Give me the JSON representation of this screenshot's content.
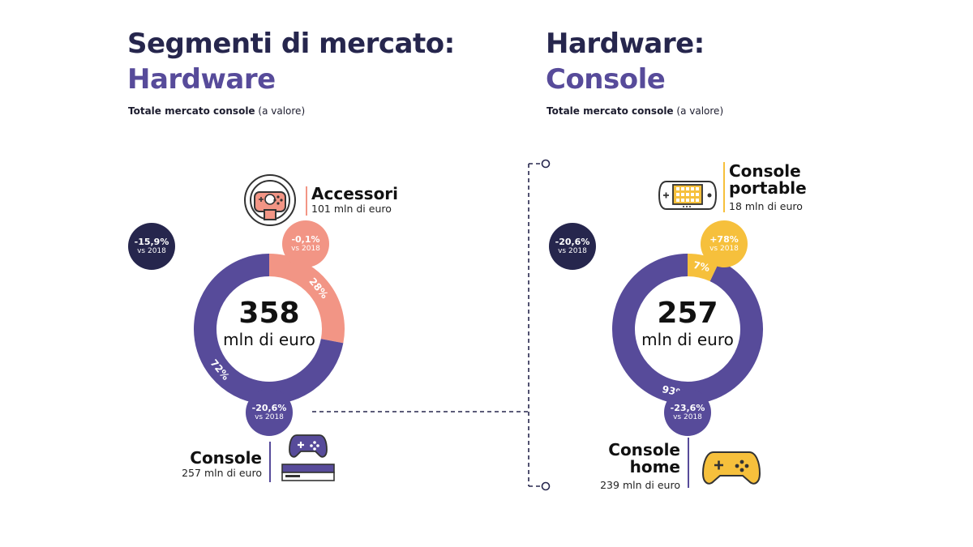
{
  "left_panel": {
    "title_line1": "Segmenti di mercato:",
    "title_line2": "Hardware",
    "subtitle_bold": "Totale mercato console",
    "subtitle_rest": "(a valore)",
    "total_badge": {
      "pct": "-15,9%",
      "vs": "vs 2018"
    },
    "center_value": "358",
    "center_unit": "mln di euro",
    "accessori": {
      "name": "Accessori",
      "value": "101 mln di euro",
      "badge_pct": "-0,1%",
      "badge_vs": "vs 2018"
    },
    "console": {
      "name": "Console",
      "value": "257 mln di euro",
      "badge_pct": "-20,6%",
      "badge_vs": "vs 2018"
    }
  },
  "right_panel": {
    "title_line1": "Hardware:",
    "title_line2": "Console",
    "subtitle_bold": "Totale mercato console",
    "subtitle_rest": "(a valore)",
    "total_badge": {
      "pct": "-20,6%",
      "vs": "vs 2018"
    },
    "center_value": "257",
    "center_unit": "mln di euro",
    "portable": {
      "name_line1": "Console",
      "name_line2": "portable",
      "value": "18 mln di euro",
      "badge_pct": "+78%",
      "badge_vs": "vs 2018"
    },
    "home": {
      "name_line1": "Console",
      "name_line2": "home",
      "value": "239 mln di euro",
      "badge_pct": "-23,6%",
      "badge_vs": "vs 2018"
    }
  },
  "colors": {
    "dark_navy": "#26264d",
    "purple": "#574b9a",
    "salmon": "#f29585",
    "yellow": "#f6c03c"
  },
  "icons": [
    "steering-wheel-icon",
    "gamepad-icon",
    "console-box-icon",
    "handheld-console-icon"
  ],
  "chart_data": [
    {
      "type": "pie",
      "title": "Totale mercato console (a valore)",
      "total": 358,
      "unit": "mln di euro",
      "categories": [
        "Accessori",
        "Console"
      ],
      "values": [
        101,
        257
      ],
      "percent_labels": [
        "28%",
        "72%"
      ],
      "percent_values": [
        28,
        72
      ],
      "change_vs_2018": [
        "-0,1%",
        "-20,6%"
      ],
      "total_change_vs_2018": "-15,9%"
    },
    {
      "type": "pie",
      "title": "Totale mercato console (a valore)",
      "total": 257,
      "unit": "mln di euro",
      "categories": [
        "Console portable",
        "Console home"
      ],
      "values": [
        18,
        239
      ],
      "percent_labels": [
        "7%",
        "93%"
      ],
      "percent_values": [
        7,
        93
      ],
      "change_vs_2018": [
        "+78%",
        "-23,6%"
      ],
      "total_change_vs_2018": "-20,6%"
    }
  ]
}
